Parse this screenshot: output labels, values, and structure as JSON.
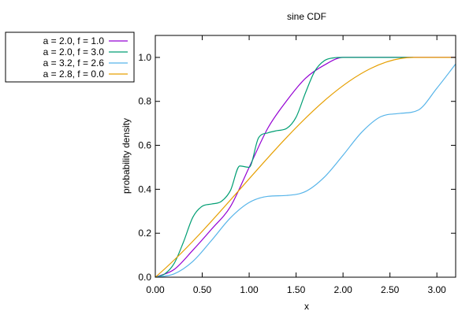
{
  "chart_data": {
    "type": "line",
    "title": "sine CDF",
    "xlabel": "x",
    "ylabel": "probability density",
    "xlim": [
      0,
      3.2
    ],
    "ylim": [
      0,
      1.1
    ],
    "xticks": [
      0,
      0.5,
      1.0,
      1.5,
      2.0,
      2.5,
      3.0
    ],
    "xtick_labels": [
      "0.00",
      "0.50",
      "1.00",
      "1.50",
      "2.00",
      "2.50",
      "3.00"
    ],
    "yticks": [
      0,
      0.2,
      0.4,
      0.6,
      0.8,
      1.0
    ],
    "ytick_labels": [
      "0.0",
      "0.2",
      "0.4",
      "0.6",
      "0.8",
      "1.0"
    ],
    "grid": false,
    "legend_position": "outside-left",
    "series": [
      {
        "name": "a = 2.0, f = 1.0",
        "color": "#9400d3",
        "x": [
          0,
          0.2,
          0.4,
          0.6,
          0.8,
          1.0,
          1.2,
          1.4,
          1.6,
          1.8,
          2.0,
          3.2
        ],
        "y": [
          0,
          0.035,
          0.123,
          0.219,
          0.321,
          0.5,
          0.679,
          0.803,
          0.905,
          0.965,
          1.0,
          1.0
        ]
      },
      {
        "name": "a = 2.0, f = 3.0",
        "color": "#009e73",
        "x": [
          0,
          0.1,
          0.2,
          0.3,
          0.4,
          0.5,
          0.6,
          0.7,
          0.8,
          0.9,
          1.0,
          1.1,
          1.2,
          1.3,
          1.4,
          1.5,
          1.6,
          1.7,
          1.8,
          1.9,
          2.0,
          2.75
        ],
        "y": [
          0,
          0.015,
          0.062,
          0.16,
          0.273,
          0.323,
          0.333,
          0.344,
          0.394,
          0.506,
          0.5,
          0.634,
          0.657,
          0.667,
          0.677,
          0.728,
          0.839,
          0.938,
          0.985,
          0.998,
          1.0,
          1.0
        ]
      },
      {
        "name": "a = 3.2, f = 2.6",
        "color": "#56b4e9",
        "x": [
          0,
          0.2,
          0.4,
          0.6,
          0.8,
          1.0,
          1.2,
          1.4,
          1.6,
          1.8,
          2.0,
          2.2,
          2.4,
          2.6,
          2.8,
          3.0,
          3.2
        ],
        "y": [
          0,
          0.015,
          0.072,
          0.168,
          0.27,
          0.34,
          0.368,
          0.372,
          0.39,
          0.455,
          0.555,
          0.66,
          0.73,
          0.745,
          0.76,
          0.86,
          0.97
        ]
      },
      {
        "name": "a = 2.8, f = 0.0",
        "color": "#e69f00",
        "x": [
          0,
          2.75,
          3.2
        ],
        "y": [
          0,
          1.0,
          1.0
        ]
      }
    ]
  }
}
